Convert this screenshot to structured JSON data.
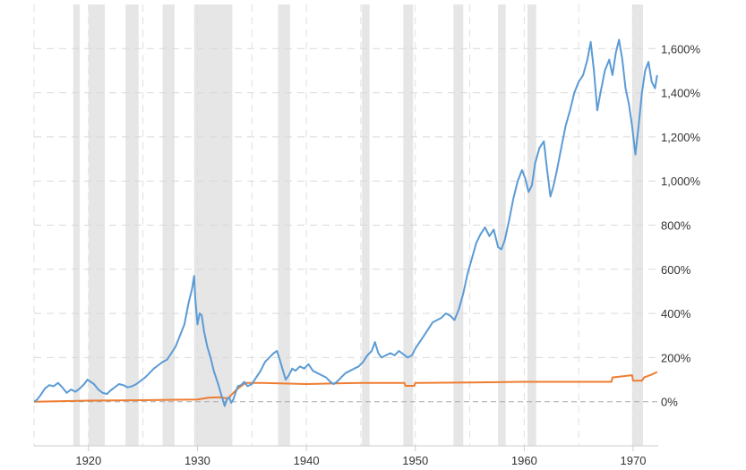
{
  "chart_data": {
    "type": "line",
    "title": "",
    "xlabel": "",
    "ylabel": "",
    "xlim": [
      1915.0,
      1972.3
    ],
    "ylim": [
      -200,
      1800
    ],
    "grid": true,
    "y_ticks": [
      0,
      200,
      400,
      600,
      800,
      1000,
      1200,
      1400,
      1600
    ],
    "y_tick_labels": [
      "0%",
      "200%",
      "400%",
      "600%",
      "800%",
      "1,000%",
      "1,200%",
      "1,400%",
      "1,600%"
    ],
    "x_ticks": [
      1920,
      1930,
      1940,
      1950,
      1960,
      1970
    ],
    "x_tick_labels": [
      "1920",
      "1930",
      "1940",
      "1950",
      "1960",
      "1970"
    ],
    "x_grid": [
      1915,
      1920,
      1925,
      1930,
      1935,
      1940,
      1945,
      1950,
      1955,
      1960,
      1965,
      1970
    ],
    "recession_bands": [
      [
        1918.6,
        1919.2
      ],
      [
        1920.0,
        1921.5
      ],
      [
        1923.4,
        1924.6
      ],
      [
        1926.8,
        1927.9
      ],
      [
        1929.7,
        1933.2
      ],
      [
        1937.4,
        1938.5
      ],
      [
        1945.1,
        1945.8
      ],
      [
        1948.9,
        1949.8
      ],
      [
        1953.5,
        1954.4
      ],
      [
        1957.6,
        1958.3
      ],
      [
        1960.3,
        1961.1
      ],
      [
        1969.9,
        1970.9
      ]
    ],
    "series": [
      {
        "color": "#5b9bd5",
        "points": [
          [
            1915.0,
            0
          ],
          [
            1915.3,
            10
          ],
          [
            1915.6,
            30
          ],
          [
            1916.0,
            60
          ],
          [
            1916.4,
            75
          ],
          [
            1916.8,
            70
          ],
          [
            1917.2,
            85
          ],
          [
            1917.6,
            65
          ],
          [
            1918.0,
            40
          ],
          [
            1918.4,
            55
          ],
          [
            1918.8,
            45
          ],
          [
            1919.2,
            60
          ],
          [
            1919.6,
            80
          ],
          [
            1919.9,
            100
          ],
          [
            1920.2,
            90
          ],
          [
            1920.5,
            80
          ],
          [
            1920.9,
            55
          ],
          [
            1921.3,
            40
          ],
          [
            1921.7,
            35
          ],
          [
            1922.0,
            50
          ],
          [
            1922.4,
            65
          ],
          [
            1922.8,
            80
          ],
          [
            1923.2,
            75
          ],
          [
            1923.6,
            65
          ],
          [
            1924.0,
            70
          ],
          [
            1924.4,
            80
          ],
          [
            1924.8,
            95
          ],
          [
            1925.2,
            110
          ],
          [
            1925.6,
            130
          ],
          [
            1926.0,
            150
          ],
          [
            1926.4,
            165
          ],
          [
            1926.8,
            180
          ],
          [
            1927.2,
            190
          ],
          [
            1927.6,
            220
          ],
          [
            1928.0,
            250
          ],
          [
            1928.4,
            300
          ],
          [
            1928.8,
            350
          ],
          [
            1929.2,
            450
          ],
          [
            1929.5,
            510
          ],
          [
            1929.7,
            570
          ],
          [
            1929.8,
            470
          ],
          [
            1930.0,
            350
          ],
          [
            1930.2,
            400
          ],
          [
            1930.4,
            390
          ],
          [
            1930.6,
            320
          ],
          [
            1930.9,
            250
          ],
          [
            1931.2,
            200
          ],
          [
            1931.5,
            140
          ],
          [
            1931.9,
            80
          ],
          [
            1932.2,
            30
          ],
          [
            1932.5,
            -20
          ],
          [
            1932.7,
            10
          ],
          [
            1932.9,
            20
          ],
          [
            1933.1,
            -5
          ],
          [
            1933.3,
            10
          ],
          [
            1933.5,
            40
          ],
          [
            1933.7,
            70
          ],
          [
            1934.0,
            75
          ],
          [
            1934.3,
            90
          ],
          [
            1934.6,
            70
          ],
          [
            1935.0,
            80
          ],
          [
            1935.4,
            110
          ],
          [
            1935.8,
            140
          ],
          [
            1936.2,
            180
          ],
          [
            1936.6,
            200
          ],
          [
            1937.0,
            220
          ],
          [
            1937.3,
            230
          ],
          [
            1937.5,
            200
          ],
          [
            1937.8,
            150
          ],
          [
            1938.1,
            100
          ],
          [
            1938.4,
            120
          ],
          [
            1938.7,
            150
          ],
          [
            1939.0,
            140
          ],
          [
            1939.4,
            160
          ],
          [
            1939.8,
            150
          ],
          [
            1940.2,
            170
          ],
          [
            1940.6,
            140
          ],
          [
            1941.0,
            130
          ],
          [
            1941.4,
            120
          ],
          [
            1941.8,
            110
          ],
          [
            1942.2,
            90
          ],
          [
            1942.5,
            80
          ],
          [
            1942.8,
            90
          ],
          [
            1943.2,
            110
          ],
          [
            1943.6,
            130
          ],
          [
            1944.0,
            140
          ],
          [
            1944.4,
            150
          ],
          [
            1944.8,
            160
          ],
          [
            1945.2,
            180
          ],
          [
            1945.6,
            210
          ],
          [
            1946.0,
            230
          ],
          [
            1946.3,
            270
          ],
          [
            1946.6,
            220
          ],
          [
            1946.9,
            200
          ],
          [
            1947.3,
            210
          ],
          [
            1947.7,
            220
          ],
          [
            1948.1,
            210
          ],
          [
            1948.5,
            230
          ],
          [
            1948.9,
            215
          ],
          [
            1949.3,
            200
          ],
          [
            1949.7,
            210
          ],
          [
            1950.0,
            240
          ],
          [
            1950.4,
            270
          ],
          [
            1950.8,
            300
          ],
          [
            1951.2,
            330
          ],
          [
            1951.6,
            360
          ],
          [
            1952.0,
            370
          ],
          [
            1952.4,
            380
          ],
          [
            1952.8,
            400
          ],
          [
            1953.2,
            390
          ],
          [
            1953.6,
            370
          ],
          [
            1954.0,
            420
          ],
          [
            1954.4,
            490
          ],
          [
            1954.8,
            580
          ],
          [
            1955.2,
            650
          ],
          [
            1955.6,
            720
          ],
          [
            1956.0,
            760
          ],
          [
            1956.4,
            790
          ],
          [
            1956.8,
            750
          ],
          [
            1957.2,
            780
          ],
          [
            1957.6,
            700
          ],
          [
            1957.9,
            690
          ],
          [
            1958.2,
            730
          ],
          [
            1958.6,
            820
          ],
          [
            1959.0,
            920
          ],
          [
            1959.4,
            1000
          ],
          [
            1959.8,
            1050
          ],
          [
            1960.1,
            1010
          ],
          [
            1960.4,
            950
          ],
          [
            1960.7,
            980
          ],
          [
            1961.0,
            1080
          ],
          [
            1961.4,
            1150
          ],
          [
            1961.8,
            1180
          ],
          [
            1962.1,
            1050
          ],
          [
            1962.4,
            930
          ],
          [
            1962.7,
            980
          ],
          [
            1963.0,
            1050
          ],
          [
            1963.4,
            1150
          ],
          [
            1963.8,
            1250
          ],
          [
            1964.2,
            1320
          ],
          [
            1964.6,
            1400
          ],
          [
            1965.0,
            1450
          ],
          [
            1965.4,
            1480
          ],
          [
            1965.8,
            1550
          ],
          [
            1966.1,
            1630
          ],
          [
            1966.4,
            1500
          ],
          [
            1966.7,
            1320
          ],
          [
            1967.0,
            1400
          ],
          [
            1967.4,
            1500
          ],
          [
            1967.8,
            1550
          ],
          [
            1968.1,
            1480
          ],
          [
            1968.4,
            1580
          ],
          [
            1968.7,
            1640
          ],
          [
            1969.0,
            1550
          ],
          [
            1969.3,
            1420
          ],
          [
            1969.6,
            1350
          ],
          [
            1969.9,
            1250
          ],
          [
            1970.2,
            1120
          ],
          [
            1970.5,
            1250
          ],
          [
            1970.8,
            1400
          ],
          [
            1971.1,
            1500
          ],
          [
            1971.4,
            1540
          ],
          [
            1971.7,
            1450
          ],
          [
            1972.0,
            1420
          ],
          [
            1972.2,
            1480
          ]
        ]
      },
      {
        "color": "#ed7d31",
        "points": [
          [
            1915.0,
            0
          ],
          [
            1920.0,
            5
          ],
          [
            1925.0,
            7
          ],
          [
            1930.0,
            10
          ],
          [
            1931.0,
            18
          ],
          [
            1932.0,
            20
          ],
          [
            1932.8,
            15
          ],
          [
            1933.2,
            35
          ],
          [
            1933.6,
            55
          ],
          [
            1934.0,
            70
          ],
          [
            1934.4,
            85
          ],
          [
            1936.0,
            85
          ],
          [
            1940.0,
            80
          ],
          [
            1945.0,
            85
          ],
          [
            1949.0,
            85
          ],
          [
            1949.1,
            72
          ],
          [
            1949.9,
            72
          ],
          [
            1950.0,
            85
          ],
          [
            1955.0,
            87
          ],
          [
            1960.0,
            90
          ],
          [
            1965.0,
            90
          ],
          [
            1968.0,
            90
          ],
          [
            1968.1,
            110
          ],
          [
            1969.0,
            115
          ],
          [
            1969.9,
            120
          ],
          [
            1970.0,
            95
          ],
          [
            1970.8,
            95
          ],
          [
            1971.0,
            110
          ],
          [
            1971.8,
            125
          ],
          [
            1972.2,
            135
          ]
        ]
      }
    ]
  }
}
